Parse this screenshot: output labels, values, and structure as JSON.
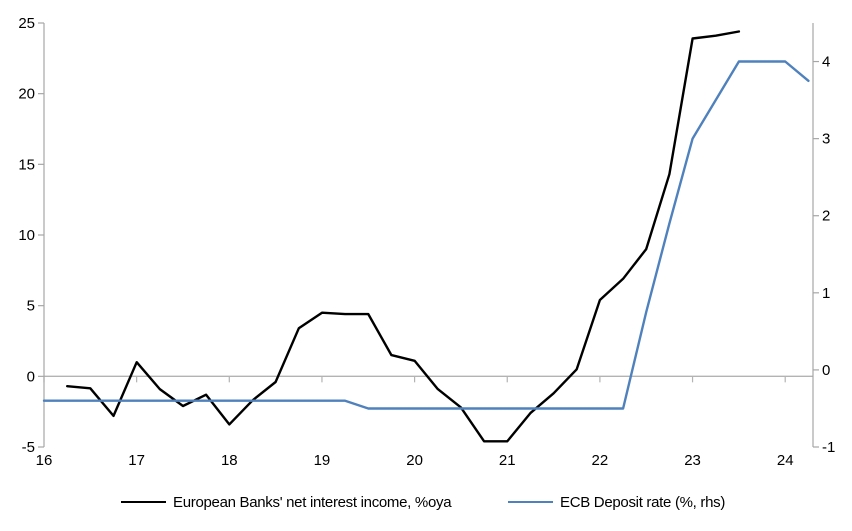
{
  "chart_data": {
    "type": "line",
    "title": "",
    "legend_position": "bottom",
    "grid": "zero-line-only",
    "colors": {
      "series1": "#000000",
      "series2": "#4f81bd",
      "axis": "#a6a6a6",
      "zero_line": "#b3b3b3",
      "text": "#000000"
    },
    "x_axis": {
      "range": [
        16,
        24.3
      ],
      "ticks": [
        16,
        17,
        18,
        19,
        20,
        21,
        22,
        23,
        24
      ]
    },
    "left_axis": {
      "range": [
        -5,
        25
      ],
      "ticks": [
        -5,
        0,
        5,
        10,
        15,
        20,
        25
      ]
    },
    "right_axis": {
      "range": [
        -1,
        4.5
      ],
      "ticks": [
        -1,
        0,
        1,
        2,
        3,
        4
      ]
    },
    "series": [
      {
        "name": "European Banks' net interest income, %oya",
        "axis": "left",
        "color": "#000000",
        "x": [
          16.25,
          16.5,
          16.75,
          17.0,
          17.25,
          17.5,
          17.75,
          18.0,
          18.25,
          18.5,
          18.75,
          19.0,
          19.25,
          19.5,
          19.75,
          20.0,
          20.25,
          20.5,
          20.75,
          21.0,
          21.25,
          21.5,
          21.75,
          22.0,
          22.25,
          22.5,
          22.75,
          23.0,
          23.25,
          23.5
        ],
        "values": [
          -0.7,
          -0.85,
          -2.8,
          1.0,
          -0.9,
          -2.1,
          -1.3,
          -3.4,
          -1.7,
          -0.4,
          3.4,
          4.5,
          4.4,
          4.4,
          1.5,
          1.1,
          -0.9,
          -2.2,
          -4.6,
          -4.6,
          -2.6,
          -1.2,
          0.5,
          5.4,
          6.9,
          9.0,
          14.3,
          23.9,
          24.1,
          24.4
        ]
      },
      {
        "name": "ECB Deposit rate (%, rhs)",
        "axis": "right",
        "color": "#4f81bd",
        "x": [
          16.0,
          16.25,
          16.5,
          16.75,
          17.0,
          17.25,
          17.5,
          17.75,
          18.0,
          18.25,
          18.5,
          18.75,
          19.0,
          19.25,
          19.5,
          19.75,
          20.0,
          20.25,
          20.5,
          20.75,
          21.0,
          21.25,
          21.5,
          21.75,
          22.0,
          22.25,
          22.5,
          22.75,
          23.0,
          23.25,
          23.5,
          23.75,
          24.0,
          24.25
        ],
        "values": [
          -0.4,
          -0.4,
          -0.4,
          -0.4,
          -0.4,
          -0.4,
          -0.4,
          -0.4,
          -0.4,
          -0.4,
          -0.4,
          -0.4,
          -0.4,
          -0.4,
          -0.5,
          -0.5,
          -0.5,
          -0.5,
          -0.5,
          -0.5,
          -0.5,
          -0.5,
          -0.5,
          -0.5,
          -0.5,
          -0.5,
          0.75,
          1.9,
          3.0,
          3.5,
          4.0,
          4.0,
          4.0,
          3.75
        ]
      }
    ]
  }
}
